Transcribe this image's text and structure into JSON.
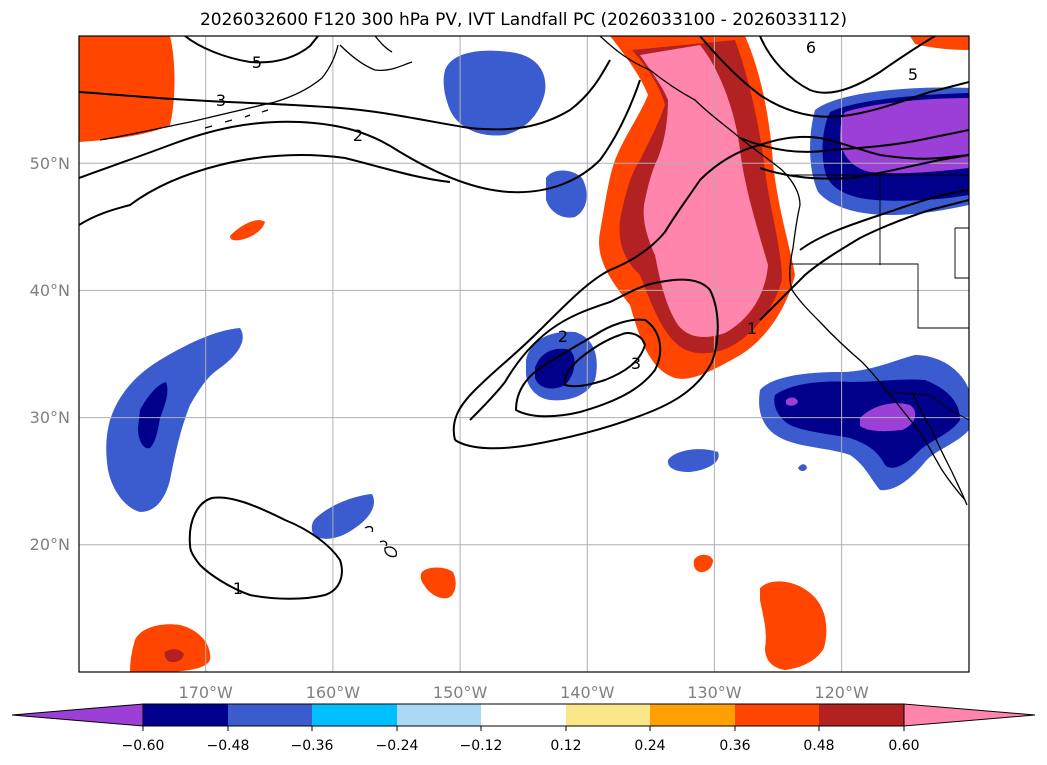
{
  "title": "2026032600 F120 300 hPa PV, IVT Landfall PC (2026033100 - 2026033112)",
  "map": {
    "projection": "PlateCarree",
    "lon_range": [
      -180,
      -110
    ],
    "lat_range": [
      10,
      60
    ],
    "lon_ticks": [
      "170°W",
      "160°W",
      "150°W",
      "140°W",
      "130°W",
      "120°W"
    ],
    "lat_ticks": [
      "20°N",
      "30°N",
      "40°N",
      "50°N"
    ],
    "grid": true,
    "features": [
      "coastlines",
      "country borders",
      "US state borders"
    ]
  },
  "contours": {
    "color": "#000000",
    "labels": [
      "5",
      "3",
      "2",
      "6",
      "5",
      "1",
      "2",
      "3",
      "1"
    ]
  },
  "colorbar": {
    "orientation": "horizontal",
    "extend": "both",
    "levels": [
      "−0.60",
      "−0.48",
      "−0.36",
      "−0.24",
      "−0.12",
      "0.12",
      "0.24",
      "0.36",
      "0.48",
      "0.60"
    ],
    "colors": [
      "#9b3fd6",
      "#00008b",
      "#3a5ccf",
      "#00bfff",
      "#add8f5",
      "#ffffff",
      "#fbe78a",
      "#ff9f00",
      "#ff4500",
      "#b22222",
      "#ff85ad"
    ]
  }
}
